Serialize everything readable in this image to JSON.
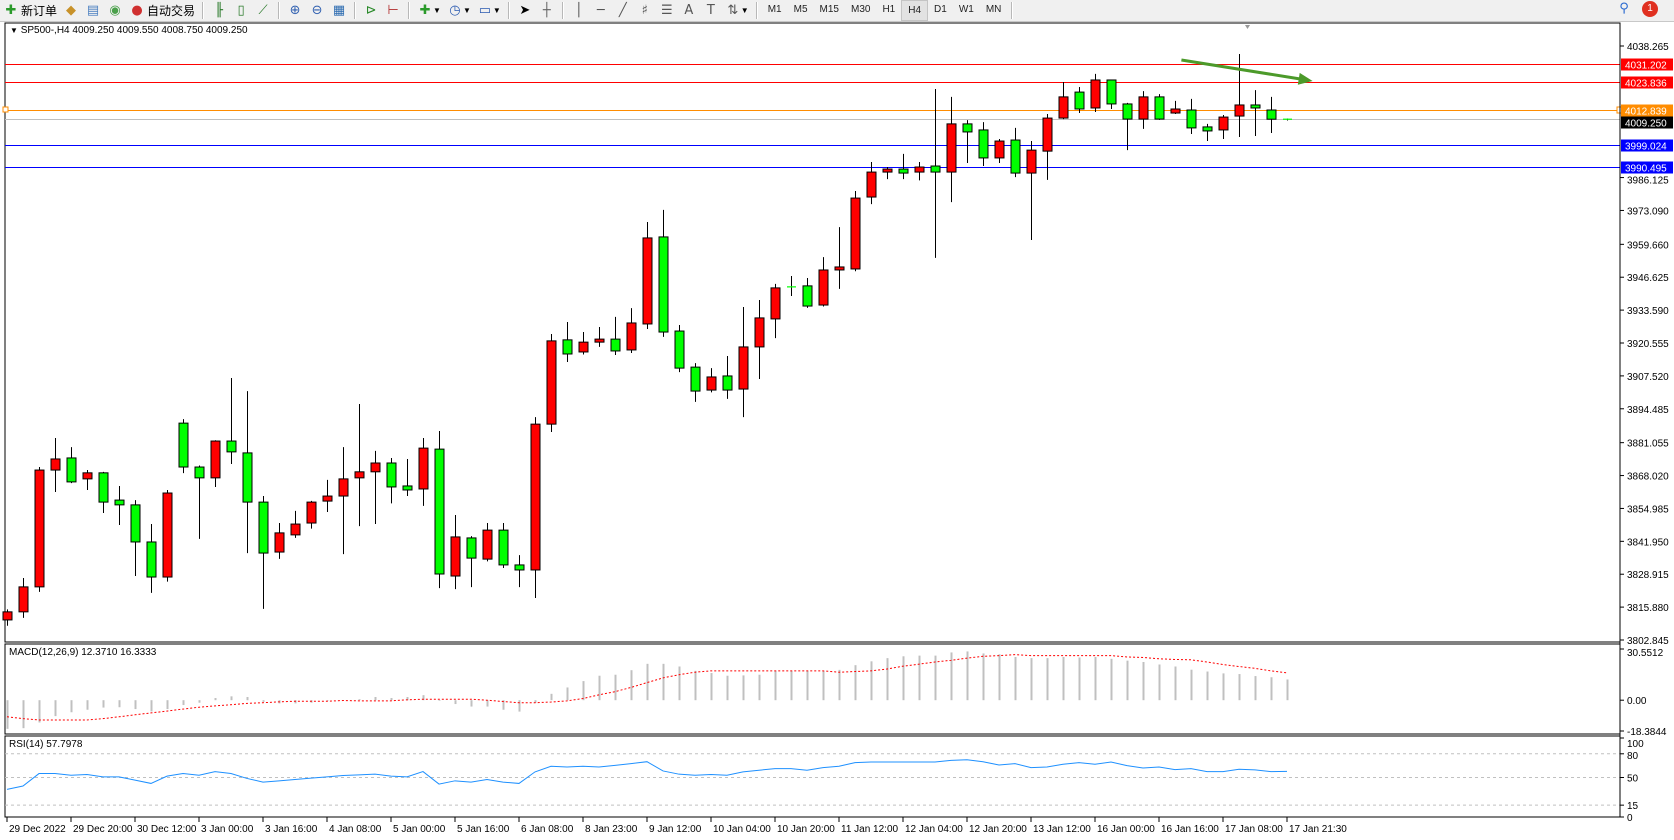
{
  "toolbar": {
    "new_order_label": "新订单",
    "auto_trading_label": "自动交易",
    "icons": [
      "new-order-icon",
      "expert-icon",
      "market-watch-icon",
      "signal-icon",
      "auto-trading-icon",
      "bar-chart-icon",
      "candlestick-icon",
      "line-chart-icon",
      "zoom-in-icon",
      "zoom-out-icon",
      "tile-windows-icon",
      "auto-scroll-icon",
      "chart-shift-icon",
      "indicators-icon",
      "periods-icon",
      "templates-icon",
      "cursor-icon",
      "crosshair-icon",
      "vertical-line-icon",
      "horizontal-line-icon",
      "trendline-icon",
      "fibonacci-icon",
      "fibo-fan-icon",
      "text-icon",
      "text-label-icon",
      "arrows-icon"
    ],
    "timeframes": [
      "M1",
      "M5",
      "M15",
      "M30",
      "H1",
      "H4",
      "D1",
      "W1",
      "MN"
    ],
    "active_timeframe": "H4",
    "notification_count": "1"
  },
  "chart": {
    "header": "SP500-,H4  4009.250 4009.550 4008.750 4009.250",
    "symbol": "SP500-",
    "period": "H4",
    "colors": {
      "bull": "#ff0000",
      "bear": "#00ff00",
      "bid_line": "#c0c0c0",
      "arrow": "#4c9a2a"
    }
  },
  "chart_data": {
    "type": "candlestick",
    "ylim": [
      3802.845,
      4038.265
    ],
    "price_ticks": [
      "4038.265",
      "3986.125",
      "3973.090",
      "3959.660",
      "3946.625",
      "3933.590",
      "3920.555",
      "3907.520",
      "3894.485",
      "3881.055",
      "3868.020",
      "3854.985",
      "3841.950",
      "3828.915",
      "3815.880",
      "3802.845"
    ],
    "levels": [
      {
        "price": 4031.202,
        "label": "4031.202",
        "color": "#ff0000"
      },
      {
        "price": 4023.836,
        "label": "4023.836",
        "color": "#ff0000"
      },
      {
        "price": 4012.839,
        "label": "4012.839",
        "color": "#ff8c00"
      },
      {
        "price": 4009.25,
        "label": "4009.250",
        "color": "#000000",
        "line_color": "#c0c0c0"
      },
      {
        "price": 3999.024,
        "label": "3999.024",
        "color": "#0000ff"
      },
      {
        "price": 3990.495,
        "label": "3990.495",
        "color": "#0000ff"
      }
    ],
    "time_labels": [
      "29 Dec 2022",
      "29 Dec 20:00",
      "30 Dec 12:00",
      "3 Jan 00:00",
      "3 Jan 16:00",
      "4 Jan 08:00",
      "5 Jan 00:00",
      "5 Jan 16:00",
      "6 Jan 08:00",
      "8 Jan 23:00",
      "9 Jan 12:00",
      "10 Jan 04:00",
      "10 Jan 20:00",
      "11 Jan 12:00",
      "12 Jan 04:00",
      "12 Jan 20:00",
      "13 Jan 12:00",
      "16 Jan 00:00",
      "16 Jan 16:00",
      "17 Jan 08:00",
      "17 Jan 21:30"
    ],
    "ohlc": [
      [
        3810.8,
        3815.0,
        3808.5,
        3814.0
      ],
      [
        3814.0,
        3827.4,
        3811.6,
        3823.9
      ],
      [
        3823.9,
        3871.4,
        3821.9,
        3870.2
      ],
      [
        3870.2,
        3882.9,
        3861.5,
        3874.6
      ],
      [
        3875.0,
        3879.3,
        3865.0,
        3865.5
      ],
      [
        3866.7,
        3870.2,
        3862.3,
        3869.1
      ],
      [
        3869.1,
        3869.5,
        3853.2,
        3857.5
      ],
      [
        3858.3,
        3863.9,
        3848.4,
        3856.4
      ],
      [
        3856.4,
        3858.3,
        3828.2,
        3841.7
      ],
      [
        3841.7,
        3848.8,
        3821.5,
        3827.8
      ],
      [
        3827.8,
        3862.3,
        3826.0,
        3861.1
      ],
      [
        3888.8,
        3890.4,
        3869.0,
        3871.4
      ],
      [
        3871.4,
        3872.0,
        3842.9,
        3867.1
      ],
      [
        3867.1,
        3882.0,
        3863.5,
        3881.7
      ],
      [
        3881.7,
        3906.7,
        3872.6,
        3877.4
      ],
      [
        3877.0,
        3901.5,
        3837.3,
        3857.5
      ],
      [
        3857.5,
        3859.9,
        3815.2,
        3837.3
      ],
      [
        3837.7,
        3849.2,
        3835.0,
        3845.3
      ],
      [
        3844.5,
        3854.0,
        3843.3,
        3848.8
      ],
      [
        3849.2,
        3858.0,
        3847.0,
        3857.5
      ],
      [
        3857.9,
        3866.3,
        3853.6,
        3859.9
      ],
      [
        3859.9,
        3879.3,
        3836.9,
        3866.7
      ],
      [
        3867.1,
        3896.4,
        3848.0,
        3869.5
      ],
      [
        3869.5,
        3877.8,
        3848.8,
        3873.0
      ],
      [
        3873.0,
        3875.0,
        3857.0,
        3863.5
      ],
      [
        3863.9,
        3874.6,
        3859.9,
        3862.3
      ],
      [
        3862.7,
        3882.9,
        3856.0,
        3878.9
      ],
      [
        3878.5,
        3885.7,
        3823.4,
        3829.0
      ],
      [
        3828.2,
        3852.4,
        3823.0,
        3843.7
      ],
      [
        3843.3,
        3844.0,
        3823.8,
        3835.3
      ],
      [
        3834.9,
        3849.2,
        3834.0,
        3846.4
      ],
      [
        3846.4,
        3849.2,
        3831.4,
        3832.6
      ],
      [
        3832.6,
        3836.5,
        3823.8,
        3830.6
      ],
      [
        3830.6,
        3891.2,
        3819.5,
        3888.4
      ],
      [
        3888.4,
        3924.1,
        3885.3,
        3921.4
      ],
      [
        3921.8,
        3928.9,
        3913.0,
        3916.2
      ],
      [
        3917.0,
        3924.9,
        3916.0,
        3920.9
      ],
      [
        3920.9,
        3926.9,
        3919.0,
        3922.1
      ],
      [
        3922.1,
        3930.9,
        3915.8,
        3917.4
      ],
      [
        3917.8,
        3934.4,
        3916.6,
        3928.5
      ],
      [
        3928.1,
        3968.5,
        3926.1,
        3962.2
      ],
      [
        3962.6,
        3973.3,
        3923.0,
        3924.9
      ],
      [
        3925.3,
        3927.7,
        3909.0,
        3910.6
      ],
      [
        3911.0,
        3912.6,
        3897.2,
        3901.5
      ],
      [
        3901.9,
        3910.6,
        3901.0,
        3907.1
      ],
      [
        3907.5,
        3915.4,
        3898.4,
        3901.9
      ],
      [
        3902.3,
        3934.8,
        3891.2,
        3919.0
      ],
      [
        3919.0,
        3937.6,
        3906.3,
        3930.5
      ],
      [
        3930.1,
        3944.0,
        3922.5,
        3942.4
      ],
      [
        3942.8,
        3947.1,
        3939.2,
        3942.8
      ],
      [
        3943.2,
        3946.3,
        3934.5,
        3935.2
      ],
      [
        3935.6,
        3954.6,
        3935.0,
        3949.5
      ],
      [
        3949.5,
        3966.5,
        3942.0,
        3950.7
      ],
      [
        3949.9,
        3980.8,
        3949.0,
        3978.0
      ],
      [
        3978.4,
        3992.3,
        3975.6,
        3988.3
      ],
      [
        3988.3,
        3990.3,
        3985.5,
        3989.5
      ],
      [
        3989.5,
        3995.5,
        3985.5,
        3987.9
      ],
      [
        3988.3,
        3992.3,
        3985.0,
        3990.3
      ],
      [
        3990.7,
        4021.2,
        3954.3,
        3988.3
      ],
      [
        3988.3,
        4018.1,
        3976.4,
        4007.4
      ],
      [
        4007.4,
        4008.9,
        3991.9,
        4004.2
      ],
      [
        4005.0,
        4008.1,
        3990.7,
        3993.9
      ],
      [
        3993.9,
        4001.4,
        3991.9,
        4000.6
      ],
      [
        4001.0,
        4005.8,
        3986.3,
        3987.9
      ],
      [
        3987.9,
        4000.6,
        3961.4,
        3997.0
      ],
      [
        3996.6,
        4011.3,
        3985.2,
        4009.7
      ],
      [
        4009.7,
        4024.0,
        4009.3,
        4018.1
      ],
      [
        4020.0,
        4022.0,
        4011.7,
        4013.3
      ],
      [
        4013.7,
        4027.2,
        4012.1,
        4024.8
      ],
      [
        4024.8,
        4025.0,
        4013.3,
        4015.3
      ],
      [
        4015.3,
        4015.7,
        3997.0,
        4009.3
      ],
      [
        4009.3,
        4020.4,
        4005.4,
        4018.1
      ],
      [
        4018.1,
        4019.2,
        4009.0,
        4009.3
      ],
      [
        4011.7,
        4016.5,
        4011.3,
        4013.3
      ],
      [
        4012.9,
        4017.3,
        4003.4,
        4005.8
      ],
      [
        4006.2,
        4007.4,
        4000.6,
        4004.6
      ],
      [
        4005.0,
        4010.9,
        4001.4,
        4010.1
      ],
      [
        4010.5,
        4035.1,
        4002.2,
        4014.9
      ],
      [
        4014.9,
        4020.8,
        4002.6,
        4013.7
      ],
      [
        4012.9,
        4018.1,
        4003.8,
        4009.25
      ],
      [
        4009.25,
        4009.55,
        4008.75,
        4009.25
      ]
    ],
    "trend_arrow": {
      "from": {
        "bar": 73.4,
        "price": 4032.7
      },
      "to": {
        "bar": 81.6,
        "price": 4024.4
      },
      "color": "#4c9a2a"
    },
    "macd": {
      "label": "MACD(12,26,9) 12.3710 16.3333",
      "ylim": [
        -18.3844,
        30.5512
      ],
      "ticks": [
        "30.5512",
        "0.00",
        "-18.3844"
      ],
      "histogram": [
        -17.1,
        -16.7,
        -13.3,
        -9.5,
        -7.2,
        -5.7,
        -4.4,
        -4.2,
        -5.3,
        -6.7,
        -5.3,
        -2.9,
        -1.5,
        1.3,
        2.3,
        1.9,
        -1.0,
        -1.9,
        -1.9,
        -1.5,
        -0.4,
        0.0,
        0.6,
        1.9,
        1.3,
        1.9,
        3.0,
        -0.4,
        -2.3,
        -3.8,
        -3.8,
        -5.7,
        -6.8,
        -1.5,
        3.8,
        7.6,
        11.4,
        14.6,
        15.2,
        17.9,
        21.7,
        21.7,
        20.1,
        17.5,
        16.2,
        14.6,
        14.8,
        15.2,
        17.5,
        17.5,
        17.5,
        17.5,
        18.1,
        20.9,
        23.2,
        25.1,
        26.2,
        26.6,
        26.6,
        28.5,
        29.1,
        27.9,
        27.4,
        25.8,
        25.1,
        25.1,
        25.8,
        25.5,
        25.8,
        24.7,
        23.6,
        22.8,
        21.3,
        20.1,
        18.2,
        17.1,
        16.0,
        15.6,
        14.4,
        13.7,
        12.371
      ],
      "signal": [
        -9.9,
        -11.0,
        -11.8,
        -11.8,
        -11.8,
        -11.8,
        -11.0,
        -9.9,
        -8.7,
        -7.6,
        -6.5,
        -5.3,
        -4.2,
        -3.4,
        -2.7,
        -1.9,
        -1.5,
        -1.0,
        -0.6,
        -0.6,
        -0.6,
        -0.2,
        -0.4,
        -0.4,
        -0.4,
        0.2,
        0.6,
        0.6,
        0.6,
        0.6,
        0.0,
        -0.8,
        -1.5,
        -1.5,
        -1.1,
        -0.4,
        1.0,
        3.2,
        5.1,
        7.6,
        10.5,
        13.3,
        15.2,
        16.7,
        17.5,
        17.5,
        17.5,
        17.5,
        17.5,
        17.5,
        17.5,
        17.5,
        16.7,
        17.1,
        17.5,
        18.6,
        20.3,
        21.5,
        22.8,
        23.8,
        25.1,
        26.2,
        26.6,
        27.2,
        26.6,
        26.6,
        26.6,
        26.6,
        26.6,
        26.6,
        25.8,
        25.5,
        24.7,
        24.3,
        24.1,
        22.8,
        21.3,
        20.1,
        19.0,
        17.5,
        16.333
      ],
      "histogram_color": "#c0c0c0",
      "signal_color": "#ff0000"
    },
    "rsi": {
      "label": "RSI(14) 57.7978",
      "ylim": [
        0,
        100
      ],
      "ticks": [
        "100",
        "80",
        "50",
        "15",
        "0"
      ],
      "levels": [
        80,
        50,
        15
      ],
      "values": [
        35,
        39.2,
        55,
        55,
        52.9,
        53.8,
        50.8,
        50.8,
        46.7,
        42.5,
        51.7,
        55,
        52.9,
        57.5,
        55,
        48.8,
        44.2,
        45.8,
        47.5,
        49.2,
        50.8,
        52.5,
        53.3,
        54.2,
        51.7,
        50.8,
        57.5,
        41.7,
        45.8,
        44.2,
        47.5,
        44.2,
        42.5,
        57.1,
        64.2,
        63.3,
        64.2,
        63.3,
        65.4,
        67.5,
        70,
        58.3,
        54.2,
        52.9,
        53.8,
        52.9,
        57.1,
        59.2,
        61.3,
        61.3,
        59.2,
        62.5,
        64.2,
        68.8,
        69.6,
        69.6,
        69.6,
        69.6,
        69.6,
        71.7,
        72.5,
        70,
        65.8,
        67.5,
        62.5,
        63.3,
        66.7,
        68.8,
        66.7,
        69.6,
        65,
        62.1,
        63.3,
        60,
        61.3,
        57.5,
        57.5,
        60.4,
        59.6,
        57.5,
        57.7978
      ],
      "color": "#1e90ff"
    }
  }
}
